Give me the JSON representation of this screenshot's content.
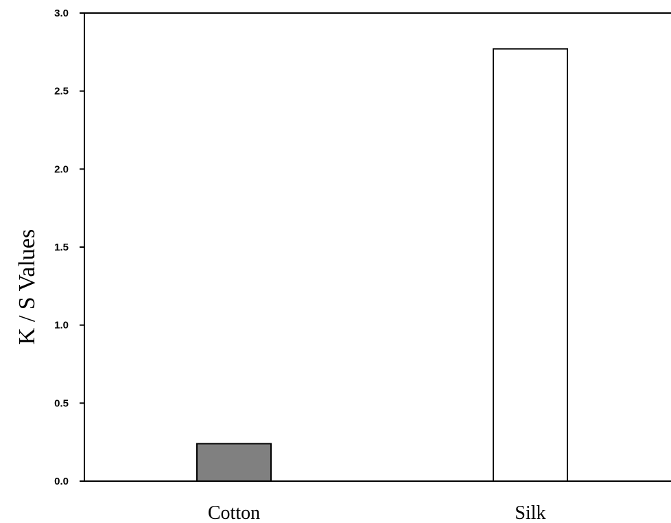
{
  "chart_data": {
    "type": "bar",
    "title": "",
    "xlabel": "",
    "ylabel": "K / S  Values",
    "categories": [
      "Cotton",
      "Silk"
    ],
    "series": [
      {
        "values": [
          0.24,
          2.77
        ],
        "colors": [
          "#808080",
          "#ffffff"
        ]
      }
    ],
    "ylim": [
      0,
      3.0
    ],
    "yticks": [
      "0.0",
      "0.5",
      "1.0",
      "1.5",
      "2.0",
      "2.5",
      "3.0"
    ],
    "grid": false,
    "legend": "none"
  }
}
